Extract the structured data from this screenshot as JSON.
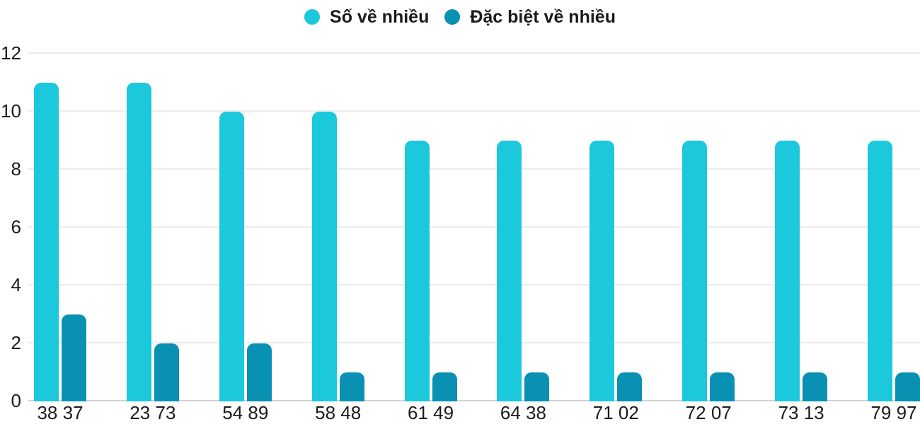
{
  "chart_data": {
    "type": "bar",
    "title": "",
    "xlabel": "",
    "ylabel": "",
    "categories": [
      "38 37",
      "23 73",
      "54 89",
      "58 48",
      "61 49",
      "64 38",
      "71 02",
      "72 07",
      "73 13",
      "79 97"
    ],
    "series": [
      {
        "name": "Số về nhiều",
        "color": "#1BC8DC",
        "values": [
          11,
          11,
          10,
          10,
          9,
          9,
          9,
          9,
          9,
          9
        ]
      },
      {
        "name": "Đặc biệt về nhiều",
        "color": "#0891B2",
        "values": [
          3,
          2,
          2,
          1,
          1,
          1,
          1,
          1,
          1,
          1
        ]
      }
    ],
    "ylim": [
      0,
      12
    ],
    "yticks": [
      0,
      2,
      4,
      6,
      8,
      10,
      12
    ],
    "grid": true,
    "legend_position": "top",
    "background": "#ffffff",
    "text_color": "#1b1b1b",
    "gridline_color": "#ececec",
    "axis_line_color": "#d3d3d3"
  }
}
